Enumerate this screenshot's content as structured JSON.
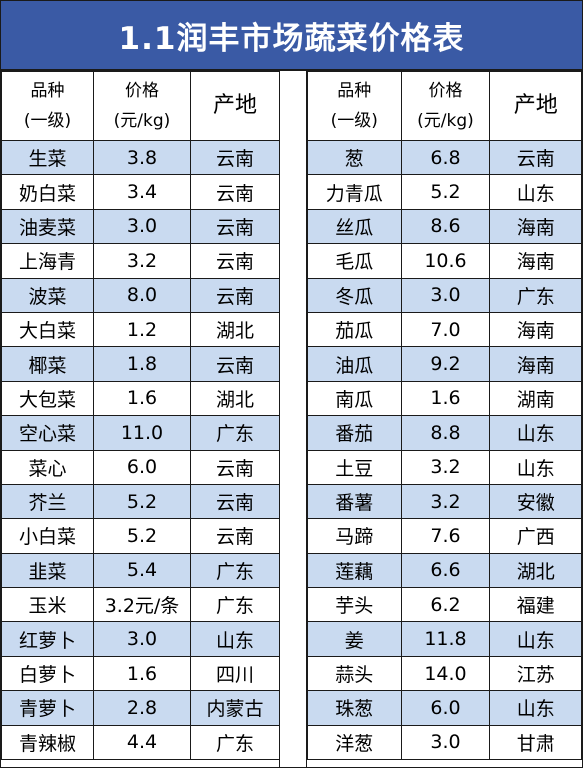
{
  "title": "1.1润丰市场蔬菜价格表",
  "headers": {
    "name_line1": "品种",
    "name_line2": "(一级)",
    "price_line1": "价格",
    "price_line2": "(元/kg)",
    "origin": "产地"
  },
  "left_rows": [
    {
      "name": "生菜",
      "price": "3.8",
      "origin": "云南"
    },
    {
      "name": "奶白菜",
      "price": "3.4",
      "origin": "云南"
    },
    {
      "name": "油麦菜",
      "price": "3.0",
      "origin": "云南"
    },
    {
      "name": "上海青",
      "price": "3.2",
      "origin": "云南"
    },
    {
      "name": "波菜",
      "price": "8.0",
      "origin": "云南"
    },
    {
      "name": "大白菜",
      "price": "1.2",
      "origin": "湖北"
    },
    {
      "name": "椰菜",
      "price": "1.8",
      "origin": "云南"
    },
    {
      "name": "大包菜",
      "price": "1.6",
      "origin": "湖北"
    },
    {
      "name": "空心菜",
      "price": "11.0",
      "origin": "广东"
    },
    {
      "name": "菜心",
      "price": "6.0",
      "origin": "云南"
    },
    {
      "name": "芥兰",
      "price": "5.2",
      "origin": "云南"
    },
    {
      "name": "小白菜",
      "price": "5.2",
      "origin": "云南"
    },
    {
      "name": "韭菜",
      "price": "5.4",
      "origin": "广东"
    },
    {
      "name": "玉米",
      "price": "3.2元/条",
      "origin": "广东"
    },
    {
      "name": "红萝卜",
      "price": "3.0",
      "origin": "山东"
    },
    {
      "name": "白萝卜",
      "price": "1.6",
      "origin": "四川"
    },
    {
      "name": "青萝卜",
      "price": "2.8",
      "origin": "内蒙古"
    },
    {
      "name": "青辣椒",
      "price": "4.4",
      "origin": "广东"
    }
  ],
  "right_rows": [
    {
      "name": "葱",
      "price": "6.8",
      "origin": "云南"
    },
    {
      "name": "力青瓜",
      "price": "5.2",
      "origin": "山东"
    },
    {
      "name": "丝瓜",
      "price": "8.6",
      "origin": "海南"
    },
    {
      "name": "毛瓜",
      "price": "10.6",
      "origin": "海南"
    },
    {
      "name": "冬瓜",
      "price": "3.0",
      "origin": "广东"
    },
    {
      "name": "茄瓜",
      "price": "7.0",
      "origin": "海南"
    },
    {
      "name": "油瓜",
      "price": "9.2",
      "origin": "海南"
    },
    {
      "name": "南瓜",
      "price": "1.6",
      "origin": "湖南"
    },
    {
      "name": "番茄",
      "price": "8.8",
      "origin": "山东"
    },
    {
      "name": "土豆",
      "price": "3.2",
      "origin": "山东"
    },
    {
      "name": "番薯",
      "price": "3.2",
      "origin": "安徽"
    },
    {
      "name": "马蹄",
      "price": "7.6",
      "origin": "广西"
    },
    {
      "name": "莲藕",
      "price": "6.6",
      "origin": "湖北"
    },
    {
      "name": "芋头",
      "price": "6.2",
      "origin": "福建"
    },
    {
      "name": "姜",
      "price": "11.8",
      "origin": "山东"
    },
    {
      "name": "蒜头",
      "price": "14.0",
      "origin": "江苏"
    },
    {
      "name": "珠葱",
      "price": "6.0",
      "origin": "山东"
    },
    {
      "name": "洋葱",
      "price": "3.0",
      "origin": "甘肃"
    }
  ],
  "colors": {
    "title_bg": "#3a5aa5",
    "stripe": "#c9daf0"
  }
}
